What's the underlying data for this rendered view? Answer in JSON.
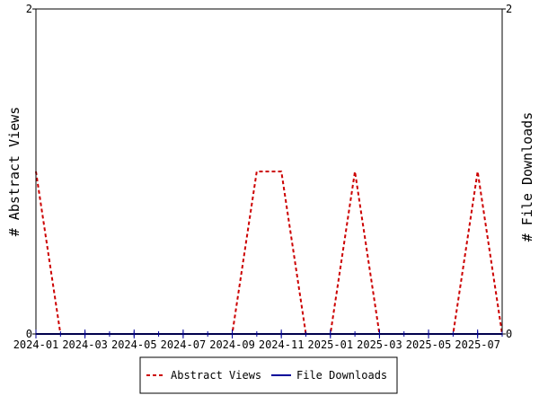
{
  "chart_data": {
    "type": "line",
    "x_is_dates": true,
    "x": [
      "2024-01",
      "2024-02",
      "2024-03",
      "2024-04",
      "2024-05",
      "2024-06",
      "2024-07",
      "2024-08",
      "2024-09",
      "2024-10",
      "2024-11",
      "2024-12",
      "2025-01",
      "2025-02",
      "2025-03",
      "2025-04",
      "2025-05",
      "2025-06",
      "2025-07",
      "2025-08"
    ],
    "series": [
      {
        "name": "Abstract Views",
        "axis": "left",
        "color": "#cc0000",
        "dash": true,
        "values": [
          1,
          0,
          0,
          0,
          0,
          0,
          0,
          0,
          0,
          1,
          1,
          0,
          0,
          1,
          0,
          0,
          0,
          0,
          1,
          0
        ]
      },
      {
        "name": "File Downloads",
        "axis": "right",
        "color": "#000099",
        "dash": false,
        "values": [
          0,
          0,
          0,
          0,
          0,
          0,
          0,
          0,
          0,
          0,
          0,
          0,
          0,
          0,
          0,
          0,
          0,
          0,
          0,
          0
        ]
      }
    ],
    "x_ticks": [
      "2024-01",
      "2024-03",
      "2024-05",
      "2024-07",
      "2024-09",
      "2024-11",
      "2025-01",
      "2025-03",
      "2025-05",
      "2025-07"
    ],
    "y_left": {
      "label": "# Abstract Views",
      "range": [
        0,
        2
      ],
      "ticks": [
        "0",
        "2"
      ]
    },
    "y_right": {
      "label": "# File Downloads",
      "range": [
        0,
        2
      ],
      "ticks": [
        "0",
        "2"
      ]
    },
    "grid": false,
    "legend_position": "bottom"
  }
}
